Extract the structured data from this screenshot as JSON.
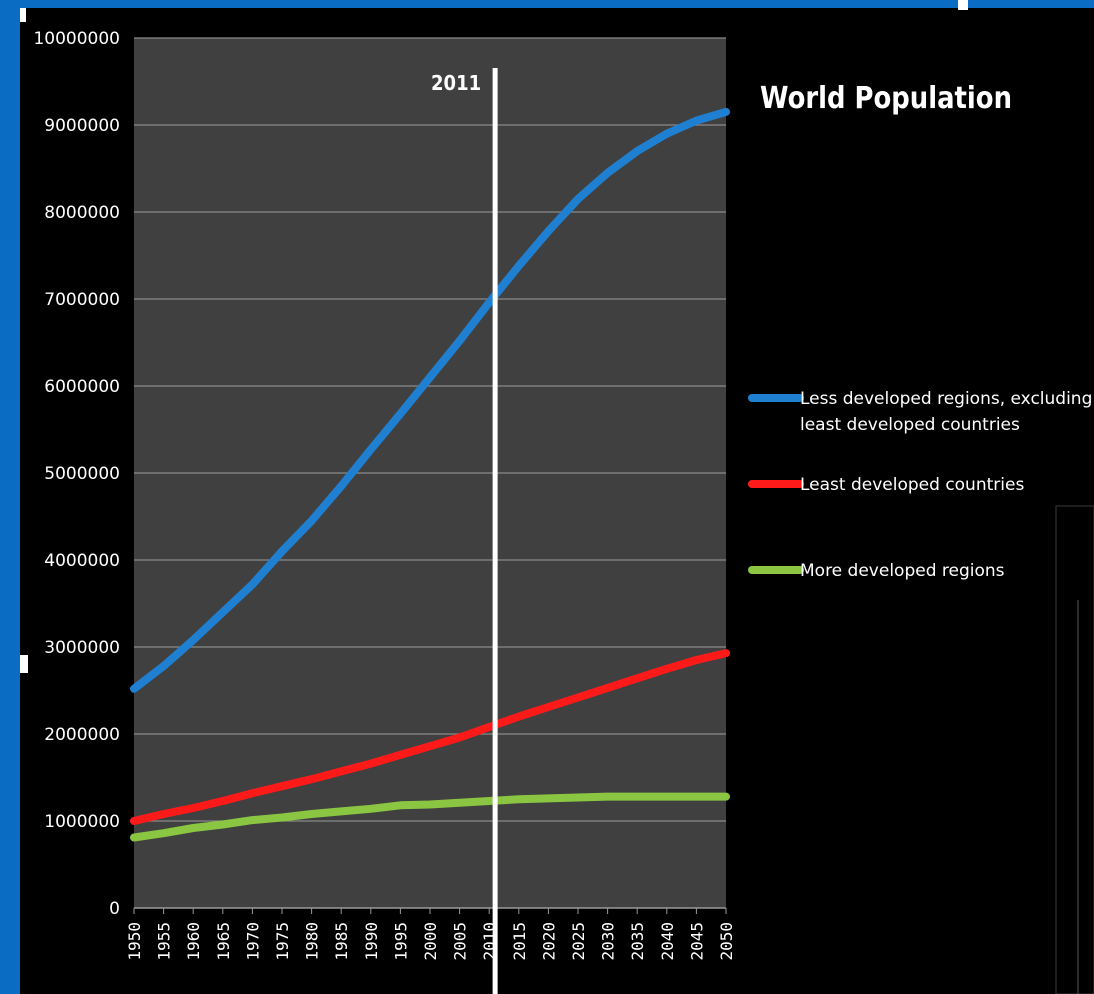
{
  "chart_data": {
    "type": "line",
    "title": "World Population",
    "annotation": {
      "label": "2011",
      "x": 2011
    },
    "x": [
      1950,
      1955,
      1960,
      1965,
      1970,
      1975,
      1980,
      1985,
      1990,
      1995,
      2000,
      2005,
      2010,
      2015,
      2020,
      2025,
      2030,
      2035,
      2040,
      2045,
      2050
    ],
    "ylim": [
      0,
      10000000
    ],
    "yticks": [
      0,
      1000000,
      2000000,
      3000000,
      4000000,
      5000000,
      6000000,
      7000000,
      8000000,
      9000000,
      10000000
    ],
    "ytick_labels": [
      "0",
      "1000000",
      "2000000",
      "3000000",
      "4000000",
      "5000000",
      "6000000",
      "7000000",
      "8000000",
      "9000000",
      "10000000"
    ],
    "xtick_labels": [
      "1950",
      "1955",
      "1960",
      "1965",
      "1970",
      "1975",
      "1980",
      "1985",
      "1990",
      "1995",
      "2000",
      "2005",
      "2010",
      "2015",
      "2020",
      "2025",
      "2030",
      "2035",
      "2040",
      "2045",
      "2050"
    ],
    "grid": true,
    "legend_position": "right",
    "series": [
      {
        "name": "Less developed regions, excluding least developed countries",
        "color": "#1f7fd0",
        "values": [
          2520000,
          2780000,
          3080000,
          3400000,
          3720000,
          4100000,
          4450000,
          4850000,
          5270000,
          5680000,
          6100000,
          6520000,
          6960000,
          7380000,
          7780000,
          8150000,
          8450000,
          8700000,
          8900000,
          9050000,
          9150000
        ]
      },
      {
        "name": "Least developed countries",
        "color": "#ff1a1a",
        "values": [
          1000000,
          1080000,
          1150000,
          1230000,
          1320000,
          1400000,
          1480000,
          1570000,
          1660000,
          1760000,
          1860000,
          1960000,
          2080000,
          2200000,
          2310000,
          2420000,
          2530000,
          2640000,
          2750000,
          2850000,
          2930000
        ]
      },
      {
        "name": "More developed regions",
        "color": "#8ac642",
        "values": [
          810000,
          860000,
          920000,
          960000,
          1010000,
          1040000,
          1080000,
          1110000,
          1140000,
          1180000,
          1190000,
          1210000,
          1230000,
          1250000,
          1260000,
          1270000,
          1280000,
          1280000,
          1280000,
          1280000,
          1280000
        ]
      }
    ]
  }
}
